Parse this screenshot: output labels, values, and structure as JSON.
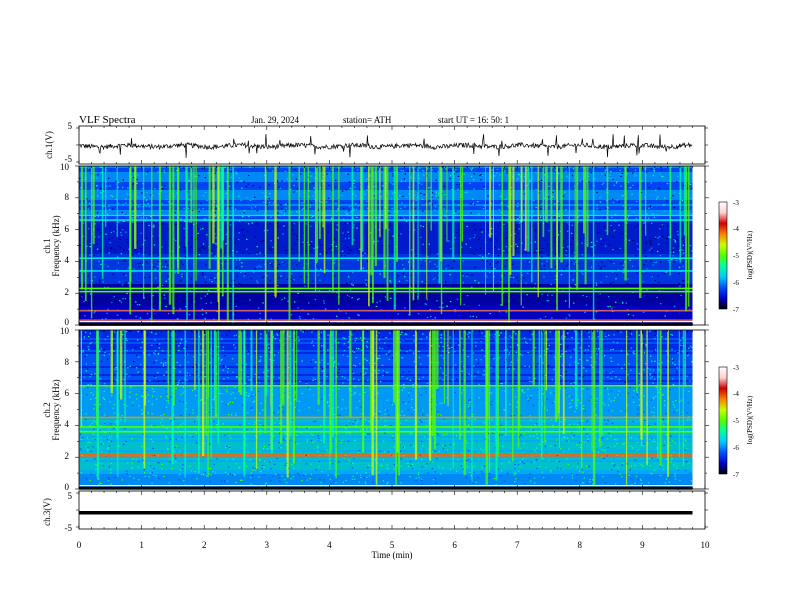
{
  "header": {
    "title": "VLF  Spectra",
    "date": "Jan. 29, 2024",
    "station": "station= ATH",
    "start": "start  UT  =    16: 50: 1"
  },
  "chart_data": [
    {
      "type": "line",
      "name": "ch1-waveform",
      "ylabel": "ch.1(V)",
      "ylim": [
        -5,
        5
      ],
      "yticks": [
        "5",
        "-5"
      ],
      "xlim": [
        0,
        10
      ],
      "x_end": 9.8,
      "baseline": 0,
      "description_values": {
        "min": -3.5,
        "max": 4.0
      }
    },
    {
      "type": "heatmap",
      "name": "ch1-spectrogram",
      "ylabel_channel": "ch.1",
      "ylabel": "Frequency  (kHz)",
      "ylim": [
        0,
        10
      ],
      "yticks": [
        "0",
        "2",
        "4",
        "6",
        "8",
        "10"
      ],
      "xlim": [
        0,
        10
      ],
      "x_end": 9.8,
      "colorbar": {
        "label": "log(PSD)(V²/Hz)",
        "range": [
          -7,
          -3
        ],
        "ticks": [
          "-3",
          "-4",
          "-5",
          "-6",
          "-7"
        ]
      },
      "bands_khz": [
        0.3,
        0.9,
        2.1,
        2.3,
        3.4,
        4.2,
        6.6,
        6.9
      ]
    },
    {
      "type": "heatmap",
      "name": "ch2-spectrogram",
      "ylabel_channel": "ch.2",
      "ylabel": "Frequency  (kHz)",
      "ylim": [
        0,
        10
      ],
      "yticks": [
        "0",
        "2",
        "4",
        "6",
        "8",
        "10"
      ],
      "xlim": [
        0,
        10
      ],
      "x_end": 9.8,
      "colorbar": {
        "label": "log(PSD)(V²/Hz)",
        "range": [
          -7,
          -3
        ],
        "ticks": [
          "-3",
          "-4",
          "-5",
          "-6",
          "-7"
        ]
      },
      "bands_khz": [
        2.0,
        2.2,
        3.6,
        3.9,
        4.5,
        6.5
      ]
    },
    {
      "type": "line",
      "name": "ch3-waveform",
      "ylabel": "ch.3(V)",
      "ylim": [
        -5,
        5
      ],
      "yticks": [
        "5",
        "-5"
      ],
      "xlim": [
        0,
        10
      ],
      "x_end": 9.8,
      "value": -0.8
    }
  ],
  "xaxis": {
    "label": "Time  (min)",
    "ticks": [
      "0",
      "1",
      "2",
      "3",
      "4",
      "5",
      "6",
      "7",
      "8",
      "9",
      "10"
    ]
  },
  "colors": {
    "scale": [
      "#000000",
      "#0000c8",
      "#0050ff",
      "#00c8ff",
      "#00ffa0",
      "#50ff00",
      "#c8ff00",
      "#ff8000",
      "#d00000",
      "#ffd0d0",
      "#ffffff"
    ]
  }
}
